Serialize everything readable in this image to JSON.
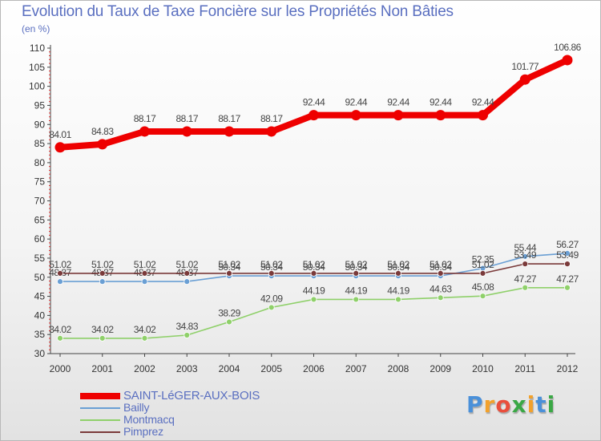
{
  "title": "Evolution du Taux de Taxe Foncière sur les Propriétés Non Bâties",
  "unit_label": "(en %)",
  "logo": {
    "text": "Proxiti",
    "colors": [
      "#4a90d9",
      "#f2a12b",
      "#e94e3c",
      "#3aa845",
      "#f2a12b",
      "#4a90d9",
      "#3aa845"
    ]
  },
  "chart_data": {
    "type": "line",
    "x": [
      "2000",
      "2001",
      "2002",
      "2003",
      "2004",
      "2005",
      "2006",
      "2007",
      "2008",
      "2009",
      "2010",
      "2011",
      "2012"
    ],
    "ylim": [
      30,
      110
    ],
    "yticks": [
      "30",
      "35",
      "40",
      "45",
      "50",
      "55",
      "60",
      "65",
      "70",
      "75",
      "80",
      "85",
      "90",
      "95",
      "100",
      "105",
      "110"
    ],
    "grid": false,
    "legend_position": "bottom-left",
    "series": [
      {
        "name": "SAINT-LéGER-AUX-BOIS",
        "color": "#ee0000",
        "values": [
          84.01,
          84.83,
          88.17,
          88.17,
          88.17,
          88.17,
          92.44,
          92.44,
          92.44,
          92.44,
          92.44,
          101.77,
          106.86
        ],
        "labels": [
          "84.01",
          "84.83",
          "88.17",
          "88.17",
          "88.17",
          "88.17",
          "92.44",
          "92.44",
          "92.44",
          "92.44",
          "92.44",
          "101.77",
          "106.86"
        ]
      },
      {
        "name": "Bailly",
        "color": "#6a9fd4",
        "values": [
          48.87,
          48.87,
          48.87,
          48.87,
          50.34,
          50.34,
          50.34,
          50.34,
          50.34,
          50.34,
          52.35,
          55.44,
          56.27
        ],
        "labels": [
          "48.87",
          "48.87",
          "48.87",
          "48.87",
          "50.34",
          "50.34",
          "50.34",
          "50.34",
          "50.34",
          "50.34",
          "52.35",
          "55.44",
          "56.27"
        ]
      },
      {
        "name": "Montmacq",
        "color": "#8fd06a",
        "values": [
          34.02,
          34.02,
          34.02,
          34.83,
          38.29,
          42.09,
          44.19,
          44.19,
          44.19,
          44.63,
          45.08,
          47.27,
          47.27
        ],
        "labels": [
          "34.02",
          "34.02",
          "34.02",
          "34.83",
          "38.29",
          "42.09",
          "44.19",
          "44.19",
          "44.19",
          "44.63",
          "45.08",
          "47.27",
          "47.27"
        ]
      },
      {
        "name": "Pimprez",
        "color": "#7a3a3a",
        "values": [
          51.02,
          51.02,
          51.02,
          51.02,
          51.02,
          51.02,
          51.02,
          51.02,
          51.02,
          51.02,
          51.02,
          53.49,
          53.49
        ],
        "labels": [
          "51.02",
          "51.02",
          "51.02",
          "51.02",
          "51.02",
          "51.02",
          "51.02",
          "51.02",
          "51.02",
          "51.02",
          "51.02",
          "53.49",
          "53.49"
        ]
      }
    ]
  }
}
